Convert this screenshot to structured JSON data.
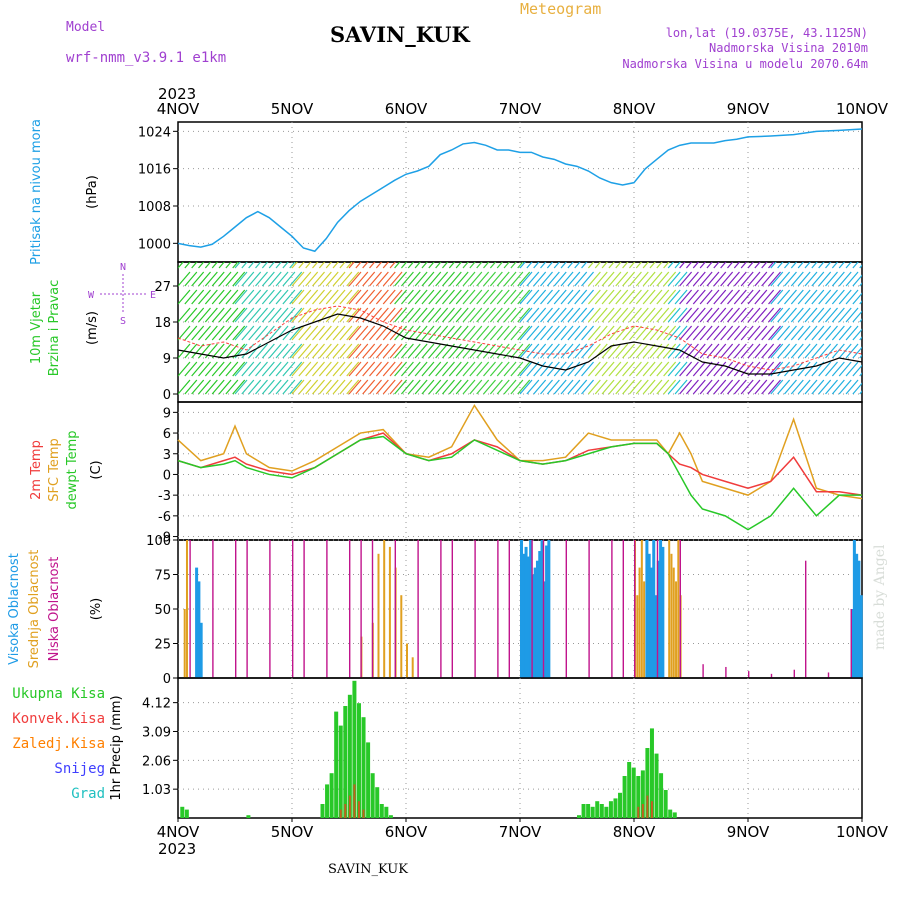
{
  "header": {
    "model_label": "Model",
    "model_value": "wrf-nmm_v3.9.1 e1km",
    "station": "SAVIN_KUK",
    "title": "Meteogram",
    "lonlat": "lon,lat (19.0375E, 43.1125N)",
    "altitude": "Nadmorska Visina 2010m",
    "altitude_model": "Nadmorska Visina u modelu 2070.64m",
    "footer_station": "SAVIN_KUK",
    "watermark": "made by Angel"
  },
  "colors": {
    "pressure": "#1ea0e6",
    "wind_speed": "#000000",
    "wind_gust": "#ff4040",
    "t2m": "#f03c3c",
    "sfc": "#e0a020",
    "dew": "#28c828",
    "cloud_high": "#1e9be6",
    "cloud_mid": "#e0a020",
    "cloud_low": "#c0148c",
    "precip_total": "#28c828",
    "precip_conv": "#f03c3c",
    "precip_grid": "#ff8000",
    "snow": "#4040ff",
    "hail": "#20c0c0",
    "purple_text": "#a040d0",
    "orange_text": "#e8b040"
  },
  "chart_data": [
    {
      "type": "line",
      "panel": "pressure",
      "ylabel_line1": "Pritisak na nivou mora",
      "ylabel_unit": "(hPa)",
      "ylim": [
        996,
        1026
      ],
      "yticks": [
        1000,
        1008,
        1016,
        1024
      ],
      "xticks": [
        "4NOV",
        "5NOV",
        "6NOV",
        "7NOV",
        "8NOV",
        "9NOV",
        "10NOV"
      ],
      "year_label": "2023",
      "series": [
        {
          "name": "",
          "x": [
            0,
            0.1,
            0.2,
            0.3,
            0.4,
            0.5,
            0.6,
            0.7,
            0.8,
            0.9,
            1.0,
            1.1,
            1.2,
            1.3,
            1.4,
            1.5,
            1.6,
            1.7,
            1.8,
            1.9,
            2.0,
            2.1,
            2.2,
            2.3,
            2.4,
            2.5,
            2.6,
            2.7,
            2.8,
            2.9,
            3.0,
            3.1,
            3.2,
            3.3,
            3.4,
            3.5,
            3.6,
            3.7,
            3.8,
            3.9,
            4.0,
            4.1,
            4.2,
            4.3,
            4.4,
            4.5,
            4.6,
            4.7,
            4.8,
            4.9,
            5.0,
            5.2,
            5.4,
            5.6,
            5.8,
            6.0
          ],
          "values": [
            1000,
            999.5,
            999.2,
            999.8,
            1001.5,
            1003.5,
            1005.5,
            1006.8,
            1005.5,
            1003.5,
            1001.5,
            999,
            998.3,
            1001,
            1004.5,
            1007,
            1009,
            1010.5,
            1012,
            1013.5,
            1014.8,
            1015.5,
            1016.5,
            1019,
            1020,
            1021.3,
            1021.6,
            1021,
            1020,
            1020,
            1019.5,
            1019.5,
            1018.5,
            1018,
            1017,
            1016.5,
            1015.5,
            1014,
            1013,
            1012.5,
            1013,
            1016,
            1018,
            1020,
            1021,
            1021.5,
            1021.5,
            1021.5,
            1022,
            1022.3,
            1022.8,
            1023,
            1023.3,
            1024,
            1024.2,
            1024.5
          ]
        }
      ]
    },
    {
      "type": "line",
      "panel": "wind",
      "ylabel_line1": "10m Vjetar",
      "ylabel_line2": "Brzina i Pravac",
      "ylabel_unit": "(m/s)",
      "compass": {
        "n": "N",
        "w": "W",
        "e": "E",
        "s": "S"
      },
      "ylim": [
        -2,
        33
      ],
      "yticks": [
        0,
        9,
        18,
        27
      ],
      "series": [
        {
          "name": "",
          "x": [
            0,
            0.2,
            0.4,
            0.6,
            0.8,
            1.0,
            1.2,
            1.4,
            1.6,
            1.8,
            2.0,
            2.2,
            2.4,
            2.6,
            2.8,
            3.0,
            3.2,
            3.4,
            3.6,
            3.8,
            4.0,
            4.2,
            4.4,
            4.6,
            4.8,
            5.0,
            5.2,
            5.4,
            5.6,
            5.8,
            6.0
          ],
          "values": [
            11,
            10,
            9,
            10,
            13,
            16,
            18,
            20,
            19,
            17,
            14,
            13,
            12,
            11,
            10,
            9,
            7,
            6,
            8,
            12,
            13,
            12,
            11,
            8,
            7,
            5,
            5,
            6,
            7,
            9,
            8
          ]
        },
        {
          "name": "",
          "x": [
            0,
            0.2,
            0.4,
            0.6,
            0.8,
            1.0,
            1.2,
            1.4,
            1.6,
            1.8,
            2.0,
            2.2,
            2.4,
            2.6,
            2.8,
            3.0,
            3.2,
            3.4,
            3.6,
            3.8,
            4.0,
            4.2,
            4.4,
            4.6,
            4.8,
            5.0,
            5.2,
            5.4,
            5.6,
            5.8,
            6.0
          ],
          "values": [
            14,
            12,
            13,
            11,
            15,
            19,
            21,
            22,
            21,
            18,
            16,
            15,
            14,
            13,
            12,
            11,
            10,
            10,
            12,
            15,
            17,
            16,
            14,
            10,
            9,
            7,
            6,
            7,
            9,
            11,
            10
          ]
        }
      ]
    },
    {
      "type": "line",
      "panel": "temperature",
      "ylabel_line1": "2m Temp",
      "ylabel_line2": "SFC Temp",
      "ylabel_line3": "dewpt Temp",
      "ylabel_unit": "(C)",
      "ylim": [
        -9.5,
        10.5
      ],
      "yticks": [
        -9,
        -6,
        -3,
        0,
        3,
        6,
        9
      ],
      "series": [
        {
          "name": "",
          "x": [
            0,
            0.2,
            0.4,
            0.5,
            0.6,
            0.8,
            1.0,
            1.2,
            1.4,
            1.6,
            1.8,
            2.0,
            2.2,
            2.4,
            2.6,
            2.8,
            3.0,
            3.2,
            3.4,
            3.6,
            3.8,
            4.0,
            4.2,
            4.3,
            4.4,
            4.5,
            4.6,
            4.8,
            5.0,
            5.2,
            5.4,
            5.6,
            5.8,
            6.0
          ],
          "values": [
            2,
            1,
            2,
            2.5,
            1.5,
            0.5,
            0,
            1,
            3,
            5,
            6,
            3,
            2,
            3,
            5,
            4,
            2,
            1.5,
            2,
            3.5,
            4,
            4.5,
            4.5,
            3,
            1.5,
            1,
            0,
            -1,
            -2,
            -1,
            2.5,
            -2.5,
            -2.5,
            -3
          ]
        },
        {
          "name": "",
          "x": [
            0,
            0.2,
            0.4,
            0.5,
            0.6,
            0.8,
            1.0,
            1.2,
            1.4,
            1.6,
            1.8,
            2.0,
            2.2,
            2.4,
            2.6,
            2.8,
            3.0,
            3.2,
            3.4,
            3.6,
            3.8,
            4.0,
            4.2,
            4.3,
            4.4,
            4.5,
            4.6,
            4.8,
            5.0,
            5.2,
            5.4,
            5.6,
            5.8,
            6.0
          ],
          "values": [
            5,
            2,
            3,
            7,
            3,
            1,
            0.5,
            2,
            4,
            6,
            6.5,
            3,
            2.5,
            4,
            10,
            5,
            2,
            2,
            2.5,
            6,
            5,
            5,
            5,
            3,
            6,
            3,
            -1,
            -2,
            -3,
            -1,
            8,
            -2,
            -3,
            -3.5
          ]
        },
        {
          "name": "",
          "x": [
            0,
            0.2,
            0.4,
            0.5,
            0.6,
            0.8,
            1.0,
            1.2,
            1.4,
            1.6,
            1.8,
            2.0,
            2.2,
            2.4,
            2.6,
            2.8,
            3.0,
            3.2,
            3.4,
            3.6,
            3.8,
            4.0,
            4.2,
            4.3,
            4.4,
            4.5,
            4.6,
            4.8,
            5.0,
            5.2,
            5.4,
            5.6,
            5.8,
            6.0
          ],
          "values": [
            2,
            1,
            1.5,
            2,
            1,
            0,
            -0.5,
            1,
            3,
            5,
            5.5,
            3,
            2,
            2.5,
            5,
            3.5,
            2,
            1.5,
            2,
            3,
            4,
            4.5,
            4.5,
            3,
            0,
            -3,
            -5,
            -6,
            -8,
            -6,
            -2,
            -6,
            -3,
            -3
          ]
        }
      ]
    },
    {
      "type": "bar",
      "panel": "clouds",
      "ylabel_line1": "Visoka Oblacnost",
      "ylabel_line2": "Srednja Oblacnost",
      "ylabel_line3": "Niska Oblacnost",
      "ylabel_unit": "(%)",
      "ylim": [
        0,
        100
      ],
      "yticks": [
        0,
        25,
        50,
        75,
        100
      ],
      "series": [
        {
          "name": "",
          "x": [
            0.15,
            0.17,
            0.19,
            3.0,
            3.02,
            3.04,
            3.06,
            3.08,
            3.1,
            3.12,
            3.14,
            3.16,
            3.18,
            3.2,
            3.22,
            3.24,
            4.1,
            4.12,
            4.14,
            4.16,
            4.18,
            4.2,
            4.22,
            4.24,
            5.9,
            5.92,
            5.94,
            5.96,
            5.98
          ],
          "values": [
            80,
            70,
            40,
            100,
            90,
            95,
            88,
            100,
            75,
            80,
            85,
            92,
            100,
            70,
            96,
            100,
            100,
            90,
            80,
            100,
            60,
            85,
            100,
            95,
            50,
            100,
            90,
            85,
            60
          ]
        },
        {
          "name": "",
          "x": [
            0.05,
            0.07,
            1.6,
            1.7,
            1.75,
            1.8,
            1.85,
            1.9,
            1.95,
            2.0,
            2.05,
            4.0,
            4.02,
            4.04,
            4.06,
            4.08,
            4.3,
            4.32,
            4.34,
            4.36,
            4.38,
            4.4,
            5.97
          ],
          "values": [
            50,
            100,
            30,
            40,
            90,
            100,
            95,
            80,
            60,
            25,
            15,
            100,
            60,
            80,
            100,
            70,
            100,
            90,
            80,
            70,
            100,
            60,
            15
          ]
        },
        {
          "name": "",
          "x": [
            0.1,
            0.3,
            0.5,
            0.6,
            0.8,
            1.0,
            1.1,
            1.3,
            1.5,
            1.6,
            1.7,
            1.9,
            2.1,
            2.3,
            2.4,
            2.6,
            2.8,
            2.9,
            3.1,
            3.2,
            3.4,
            3.6,
            3.8,
            3.9,
            4.0,
            4.2,
            4.4,
            4.6,
            4.8,
            5.0,
            5.2,
            5.4,
            5.5,
            5.7,
            5.9
          ],
          "values": [
            100,
            100,
            100,
            100,
            100,
            100,
            100,
            100,
            100,
            100,
            100,
            100,
            100,
            100,
            100,
            100,
            100,
            100,
            100,
            100,
            100,
            100,
            100,
            100,
            100,
            100,
            100,
            10,
            8,
            5,
            3,
            6,
            85,
            4,
            50
          ]
        }
      ]
    },
    {
      "type": "bar",
      "panel": "precipitation",
      "ylabel_unit": "1hr Precip (mm)",
      "legend": [
        {
          "key": "precip_total",
          "label": "Ukupna Kisa"
        },
        {
          "key": "precip_conv",
          "label": "Konvek.Kisa"
        },
        {
          "key": "precip_grid",
          "label": "Zaledj.Kisa"
        },
        {
          "key": "snow",
          "label": "Snijeg"
        },
        {
          "key": "hail",
          "label": "Grad"
        }
      ],
      "ylim": [
        0,
        5.0
      ],
      "yticks": [
        1.03,
        2.06,
        3.09,
        4.12
      ],
      "xticks": [
        "4NOV",
        "5NOV",
        "6NOV",
        "7NOV",
        "8NOV",
        "9NOV",
        "10NOV"
      ],
      "year_label": "2023",
      "series": [
        {
          "name": "",
          "x": [
            0.02,
            0.06,
            0.6,
            1.25,
            1.29,
            1.33,
            1.37,
            1.41,
            1.45,
            1.49,
            1.53,
            1.57,
            1.61,
            1.65,
            1.69,
            1.73,
            1.77,
            1.81,
            1.85,
            3.5,
            3.54,
            3.58,
            3.62,
            3.66,
            3.7,
            3.74,
            3.78,
            3.82,
            3.86,
            3.9,
            3.94,
            3.98,
            4.02,
            4.06,
            4.1,
            4.14,
            4.18,
            4.22,
            4.26,
            4.3,
            4.34
          ],
          "values": [
            0.4,
            0.3,
            0.1,
            0.5,
            1.2,
            1.6,
            3.8,
            3.3,
            4.0,
            4.4,
            4.9,
            4.1,
            3.6,
            2.7,
            1.6,
            1.1,
            0.5,
            0.4,
            0.1,
            0.1,
            0.5,
            0.5,
            0.4,
            0.6,
            0.5,
            0.4,
            0.6,
            0.7,
            0.9,
            1.5,
            2.0,
            1.8,
            1.5,
            1.7,
            2.5,
            3.2,
            2.3,
            1.6,
            1.0,
            0.3,
            0.2
          ]
        },
        {
          "name": "",
          "x": [
            1.41,
            1.45,
            1.49,
            1.53,
            1.57,
            1.61,
            4.02,
            4.06,
            4.1,
            4.14
          ],
          "values": [
            0.3,
            0.5,
            0.8,
            1.2,
            0.6,
            0.3,
            0.4,
            0.5,
            0.8,
            0.6
          ]
        }
      ]
    }
  ]
}
